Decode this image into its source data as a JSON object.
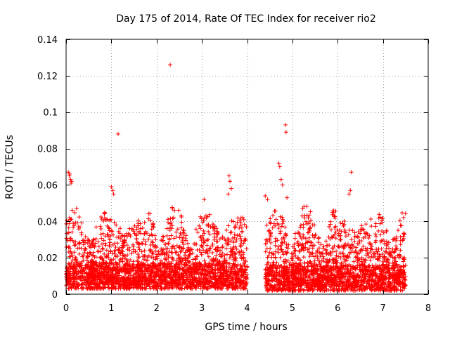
{
  "chart_data": {
    "type": "scatter",
    "title": "Day 175 of 2014, Rate Of TEC Index for receiver rio2",
    "xlabel": "GPS time / hours",
    "ylabel": "ROTI / TECUs",
    "xlim": [
      0,
      8
    ],
    "ylim": [
      0,
      0.14
    ],
    "xticks": [
      0,
      1,
      2,
      3,
      4,
      5,
      6,
      7,
      8
    ],
    "xtick_labels": [
      "0",
      "1",
      "2",
      "3",
      "4",
      "5",
      "6",
      "7",
      "8"
    ],
    "yticks": [
      0,
      0.02,
      0.04,
      0.06,
      0.08,
      0.1,
      0.12,
      0.14
    ],
    "ytick_labels": [
      "0",
      "0.02",
      "0.04",
      "0.06",
      "0.08",
      "0.1",
      "0.12",
      "0.14"
    ],
    "grid": true,
    "marker": "+",
    "color": "#ff0000",
    "series": [
      {
        "name": "ROTI",
        "segments": [
          {
            "x_start": 0.0,
            "x_end": 4.0,
            "y_min": 0.003,
            "y_max": 0.05
          },
          {
            "x_start": 4.4,
            "x_end": 7.5,
            "y_min": 0.002,
            "y_max": 0.05
          }
        ],
        "points": [
          {
            "x": 0.05,
            "y": 0.067
          },
          {
            "x": 0.07,
            "y": 0.065
          },
          {
            "x": 0.1,
            "y": 0.063
          },
          {
            "x": 0.12,
            "y": 0.062
          },
          {
            "x": 0.08,
            "y": 0.066
          },
          {
            "x": 0.11,
            "y": 0.061
          },
          {
            "x": 1.0,
            "y": 0.059
          },
          {
            "x": 1.03,
            "y": 0.057
          },
          {
            "x": 1.05,
            "y": 0.055
          },
          {
            "x": 1.15,
            "y": 0.088
          },
          {
            "x": 2.3,
            "y": 0.126
          },
          {
            "x": 3.05,
            "y": 0.052
          },
          {
            "x": 3.6,
            "y": 0.065
          },
          {
            "x": 3.62,
            "y": 0.062
          },
          {
            "x": 3.65,
            "y": 0.058
          },
          {
            "x": 3.58,
            "y": 0.055
          },
          {
            "x": 4.4,
            "y": 0.054
          },
          {
            "x": 4.45,
            "y": 0.052
          },
          {
            "x": 4.7,
            "y": 0.072
          },
          {
            "x": 4.72,
            "y": 0.07
          },
          {
            "x": 4.75,
            "y": 0.063
          },
          {
            "x": 4.78,
            "y": 0.06
          },
          {
            "x": 4.85,
            "y": 0.093
          },
          {
            "x": 4.86,
            "y": 0.089
          },
          {
            "x": 4.88,
            "y": 0.053
          },
          {
            "x": 6.3,
            "y": 0.067
          },
          {
            "x": 6.28,
            "y": 0.057
          },
          {
            "x": 6.25,
            "y": 0.055
          }
        ]
      }
    ]
  }
}
